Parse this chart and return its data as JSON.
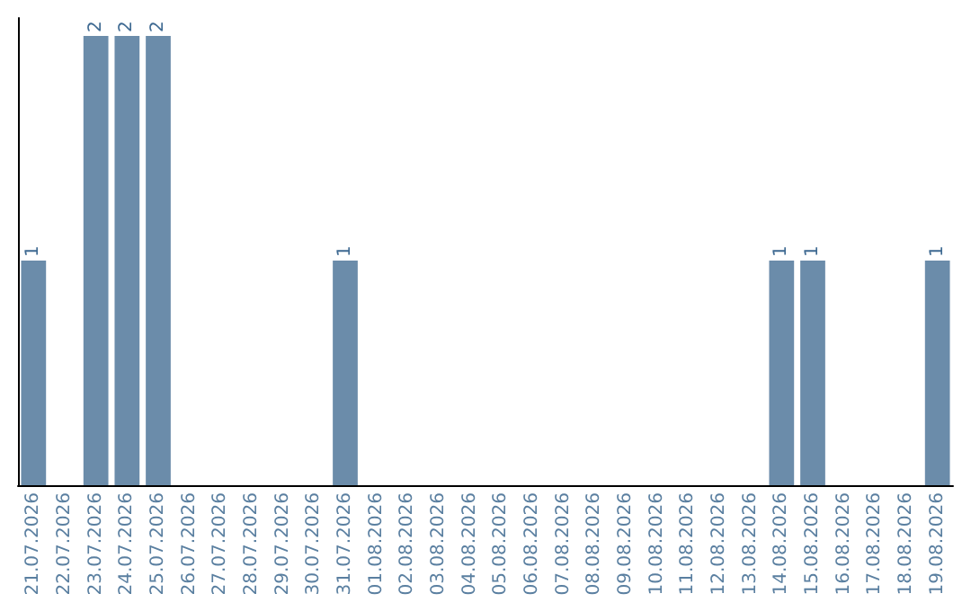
{
  "chart_data": {
    "type": "bar",
    "categories": [
      "21.07.2026",
      "22.07.2026",
      "23.07.2026",
      "24.07.2026",
      "25.07.2026",
      "26.07.2026",
      "27.07.2026",
      "28.07.2026",
      "29.07.2026",
      "30.07.2026",
      "31.07.2026",
      "01.08.2026",
      "02.08.2026",
      "03.08.2026",
      "04.08.2026",
      "05.08.2026",
      "06.08.2026",
      "07.08.2026",
      "08.08.2026",
      "09.08.2026",
      "10.08.2026",
      "11.08.2026",
      "12.08.2026",
      "13.08.2026",
      "14.08.2026",
      "15.08.2026",
      "16.08.2026",
      "17.08.2026",
      "18.08.2026",
      "19.08.2026"
    ],
    "values": [
      1,
      0,
      2,
      2,
      2,
      0,
      0,
      0,
      0,
      0,
      1,
      0,
      0,
      0,
      0,
      0,
      0,
      0,
      0,
      0,
      0,
      0,
      0,
      0,
      1,
      1,
      0,
      0,
      0,
      1
    ],
    "value_labels": [
      "1",
      null,
      "2",
      "2",
      "2",
      null,
      null,
      null,
      null,
      null,
      "1",
      null,
      null,
      null,
      null,
      null,
      null,
      null,
      null,
      null,
      null,
      null,
      null,
      null,
      "1",
      "1",
      null,
      null,
      null,
      "1"
    ],
    "color": "#6b8caa",
    "ylim": [
      0,
      2.08
    ],
    "tick_labels": "x",
    "grid": false
  }
}
